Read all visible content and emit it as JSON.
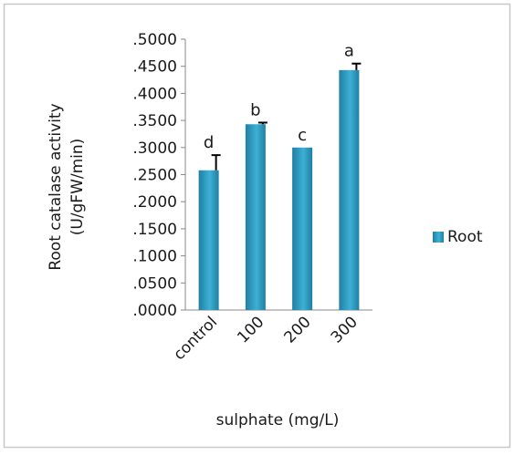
{
  "chart_data": {
    "type": "bar",
    "categories": [
      "control",
      "100",
      "200",
      "300"
    ],
    "series": [
      {
        "name": "Root",
        "values": [
          0.258,
          0.343,
          0.3,
          0.443
        ],
        "error": [
          0.028,
          0.003,
          0.0,
          0.012
        ],
        "letters": [
          "d",
          "b",
          "c",
          "a"
        ]
      }
    ],
    "title": "",
    "xlabel": "sulphate (mg/L)",
    "ylabel_line1": "Root catalase activity",
    "ylabel_line2": "(U/gFW/min)",
    "ylim": [
      0,
      0.5
    ],
    "yticks": [
      ".0000",
      ".0500",
      ".1000",
      ".1500",
      ".2000",
      ".2500",
      ".3000",
      ".3500",
      ".4000",
      ".4500",
      ".5000"
    ],
    "grid": false,
    "legend_position": "right",
    "colors": {
      "bar": "#3eb0d5",
      "bar_dark": "#1f7fa3",
      "axis": "#888888",
      "frame": "#c8c8c8"
    }
  }
}
